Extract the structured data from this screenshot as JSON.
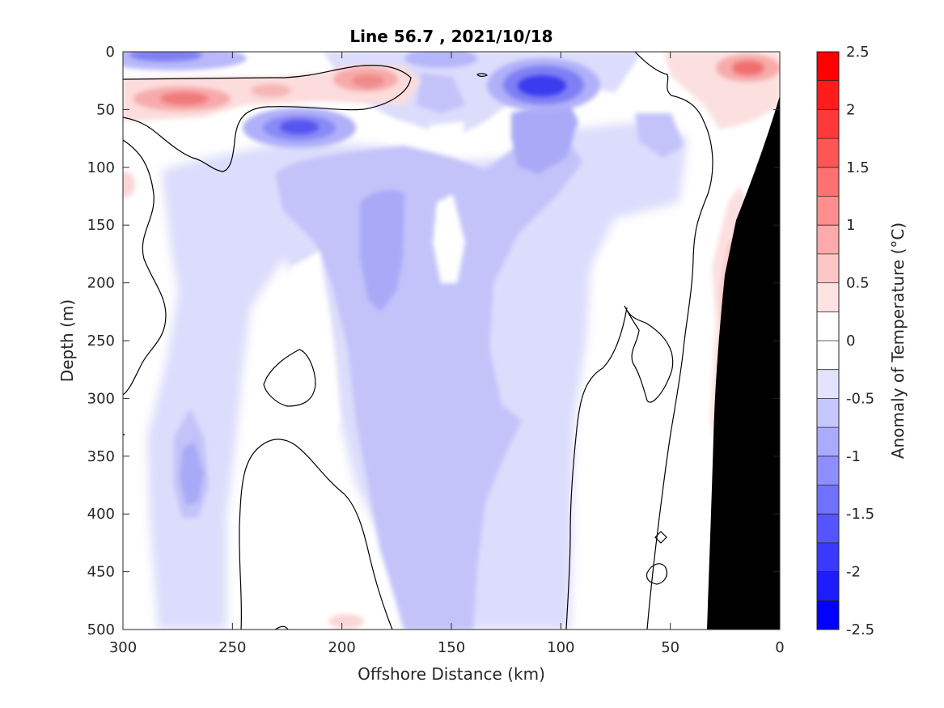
{
  "chart_data": {
    "type": "heatmap",
    "title": "Line 56.7 , 2021/10/18",
    "xlabel": "Offshore Distance (km)",
    "ylabel": "Depth (m)",
    "xlim": [
      300,
      0
    ],
    "ylim": [
      0,
      500
    ],
    "x_reversed": true,
    "y_reversed": true,
    "xticks": [
      300,
      250,
      200,
      150,
      100,
      50,
      0
    ],
    "yticks": [
      0,
      50,
      100,
      150,
      200,
      250,
      300,
      350,
      400,
      450,
      500
    ],
    "colorbar": {
      "label": "Anomaly of Temperature (°C)",
      "range": [
        -2.5,
        2.5
      ],
      "step": 0.25,
      "ticks": [
        "2.5",
        "2",
        "1.5",
        "1",
        "0.5",
        "0",
        "-0.5",
        "-1",
        "-1.5",
        "-2",
        "-2.5"
      ],
      "colors": {
        "positive": "#ff0000",
        "negative": "#0000ff",
        "zero": "#ffffff"
      }
    },
    "zero_contour_color": "#000000",
    "bathymetry_color": "#000000",
    "anomaly_features": [
      {
        "x": 275,
        "depth": 42,
        "value": 1.0
      },
      {
        "x": 230,
        "depth": 35,
        "value": 0.5
      },
      {
        "x": 186,
        "depth": 25,
        "value": 1.0
      },
      {
        "x": 275,
        "depth": 5,
        "value": -0.75
      },
      {
        "x": 218,
        "depth": 68,
        "value": -1.5
      },
      {
        "x": 150,
        "depth": 5,
        "value": -0.5
      },
      {
        "x": 103,
        "depth": 30,
        "value": -2.0
      },
      {
        "x": 17,
        "depth": 15,
        "value": 1.0
      },
      {
        "x": 190,
        "depth": 160,
        "value": -0.75
      },
      {
        "x": 105,
        "depth": 120,
        "value": -0.75
      },
      {
        "x": 150,
        "depth": 400,
        "value": -0.5
      },
      {
        "x": 270,
        "depth": 380,
        "value": -0.75
      },
      {
        "x": 25,
        "depth": 230,
        "value": 0.5
      },
      {
        "x": 300,
        "depth": 110,
        "value": 0.25
      }
    ]
  }
}
